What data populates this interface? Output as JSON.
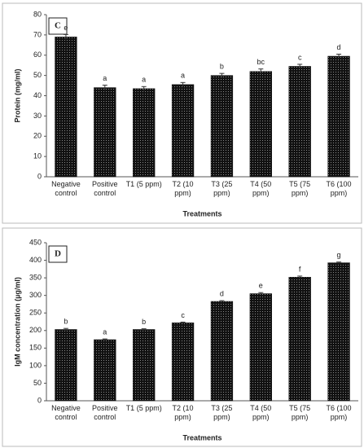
{
  "chart_data": [
    {
      "type": "bar",
      "panel_label": "C",
      "ylabel": "Protein (mg/ml)",
      "xlabel": "Treatments",
      "categories": [
        "Negative control",
        "Positive control",
        "T1 (5 ppm)",
        "T2 (10 ppm)",
        "T3 (25 ppm)",
        "T4 (50 ppm)",
        "T5 (75 ppm)",
        "T6 (100 ppm)"
      ],
      "values": [
        69,
        44,
        43.5,
        45.5,
        50,
        52,
        54.5,
        59.5
      ],
      "errors": [
        1.2,
        1.2,
        1,
        1,
        1,
        1.2,
        1,
        1
      ],
      "annotations": [
        "e",
        "a",
        "a",
        "a",
        "b",
        "bc",
        "c",
        "d"
      ],
      "color": "#111111",
      "ylim": [
        0,
        80
      ],
      "yticks": [
        0,
        10,
        20,
        30,
        40,
        50,
        60,
        70,
        80
      ]
    },
    {
      "type": "bar",
      "panel_label": "D",
      "ylabel": "IgM concentration (µg/ml)",
      "xlabel": "Treatments",
      "categories": [
        "Negative control",
        "Positive control",
        "T1 (5 ppm)",
        "T2 (10 ppm)",
        "T3 (25 ppm)",
        "T4 (50 ppm)",
        "T5 (75 ppm)",
        "T6 (100 ppm)"
      ],
      "values": [
        203,
        174,
        203,
        222,
        283,
        305,
        352,
        393
      ],
      "errors": [
        3,
        2,
        2,
        2,
        2,
        3,
        3,
        2
      ],
      "annotations": [
        "b",
        "a",
        "b",
        "c",
        "d",
        "e",
        "f",
        "g"
      ],
      "color": "#111111",
      "ylim": [
        0,
        450
      ],
      "yticks": [
        0,
        50,
        100,
        150,
        200,
        250,
        300,
        350,
        400,
        450
      ]
    }
  ]
}
